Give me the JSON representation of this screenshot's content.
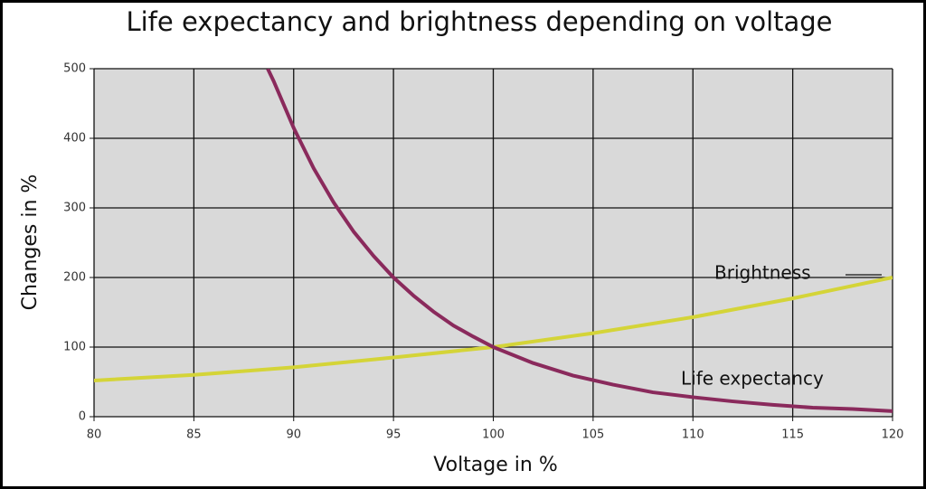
{
  "chart_data": {
    "type": "line",
    "title": "Life expectancy and brightness depending on voltage",
    "x_label": "Voltage in %",
    "y_label": "Changes in %",
    "xlim": [
      80,
      120
    ],
    "xticks": [
      80,
      85,
      90,
      95,
      100,
      105,
      110,
      115,
      120
    ],
    "ylim": [
      0,
      500
    ],
    "yticks": [
      0,
      100,
      200,
      300,
      400,
      500
    ],
    "grid": true,
    "series": [
      {
        "name": "Brightness",
        "color": "#d4d438",
        "x": [
          80,
          85,
          90,
          95,
          100,
          105,
          110,
          115,
          120
        ],
        "values": [
          52,
          60,
          71,
          85,
          100,
          120,
          143,
          170,
          200
        ]
      },
      {
        "name": "Life expectancy",
        "color": "#8a2a5c",
        "x": [
          88.7,
          89,
          90,
          91,
          92,
          93,
          94,
          95,
          96,
          97,
          98,
          99,
          100,
          102,
          104,
          106,
          108,
          110,
          112,
          114,
          116,
          118,
          120
        ],
        "values": [
          500,
          482,
          415,
          357,
          308,
          266,
          231,
          200,
          174,
          151,
          131,
          115,
          100,
          77,
          59,
          46,
          35,
          28,
          22,
          17,
          13,
          11,
          8
        ]
      }
    ]
  }
}
